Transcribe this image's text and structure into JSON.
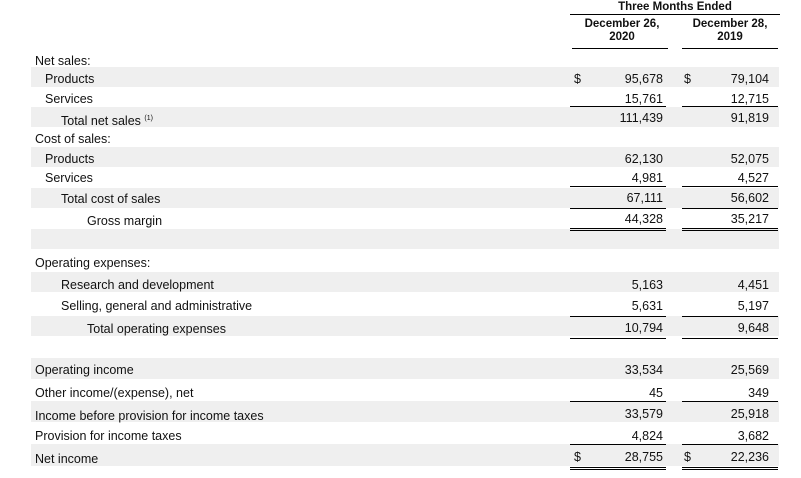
{
  "header": {
    "group_title": "Three Months Ended",
    "col1_line1": "December 26,",
    "col1_line2": "2020",
    "col2_line1": "December 28,",
    "col2_line2": "2019"
  },
  "net_sales": {
    "section_label": "Net sales:",
    "products": {
      "label": "Products",
      "v2020": "95,678",
      "v2019": "79,104"
    },
    "services": {
      "label": "Services",
      "v2020": "15,761",
      "v2019": "12,715"
    },
    "total": {
      "label": "Total net sales",
      "note": "(1)",
      "v2020": "111,439",
      "v2019": "91,819"
    }
  },
  "cost_of_sales": {
    "section_label": "Cost of sales:",
    "products": {
      "label": "Products",
      "v2020": "62,130",
      "v2019": "52,075"
    },
    "services": {
      "label": "Services",
      "v2020": "4,981",
      "v2019": "4,527"
    },
    "total": {
      "label": "Total cost of sales",
      "v2020": "67,111",
      "v2019": "56,602"
    }
  },
  "gross_margin": {
    "label": "Gross margin",
    "v2020": "44,328",
    "v2019": "35,217"
  },
  "operating_expenses": {
    "section_label": "Operating expenses:",
    "rnd": {
      "label": "Research and development",
      "v2020": "5,163",
      "v2019": "4,451"
    },
    "sga": {
      "label": "Selling, general and administrative",
      "v2020": "5,631",
      "v2019": "5,197"
    },
    "total": {
      "label": "Total operating expenses",
      "v2020": "10,794",
      "v2019": "9,648"
    }
  },
  "operating_income": {
    "label": "Operating income",
    "v2020": "33,534",
    "v2019": "25,569"
  },
  "other_income": {
    "label": "Other income/(expense), net",
    "v2020": "45",
    "v2019": "349"
  },
  "income_before_tax": {
    "label": "Income before provision for income taxes",
    "v2020": "33,579",
    "v2019": "25,918"
  },
  "provision": {
    "label": "Provision for income taxes",
    "v2020": "4,824",
    "v2019": "3,682"
  },
  "net_income": {
    "label": "Net income",
    "v2020": "28,755",
    "v2019": "22,236"
  },
  "currency_symbol": "$"
}
